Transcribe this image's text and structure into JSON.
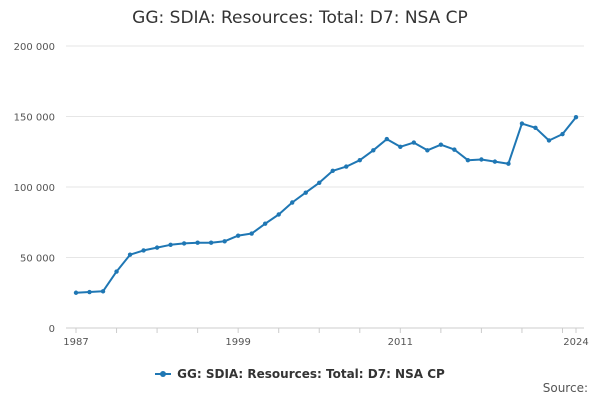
{
  "chart_data": {
    "type": "line",
    "title": "GG: SDIA: Resources: Total: D7: NSA CP",
    "x_tick_labels": [
      "1987",
      "1999",
      "2011",
      "2024"
    ],
    "y_tick_labels": [
      "0",
      "50 000",
      "100 000",
      "150 000",
      "200 000"
    ],
    "x_range": [
      1987,
      2024
    ],
    "ylim": [
      0,
      200000
    ],
    "grid": "horizontal",
    "legend_position": "bottom",
    "series": [
      {
        "name": "GG: SDIA: Resources: Total: D7: NSA CP",
        "color": "#1f77b4",
        "x": [
          1987,
          1988,
          1989,
          1990,
          1991,
          1992,
          1993,
          1994,
          1995,
          1996,
          1997,
          1998,
          1999,
          2000,
          2001,
          2002,
          2003,
          2004,
          2005,
          2006,
          2007,
          2008,
          2009,
          2010,
          2011,
          2012,
          2013,
          2014,
          2015,
          2016,
          2017,
          2018,
          2019,
          2020,
          2021,
          2022,
          2023,
          2024
        ],
        "values": [
          25000,
          25500,
          26000,
          40000,
          52000,
          55000,
          57000,
          59000,
          60000,
          60500,
          60500,
          61500,
          65500,
          67000,
          74000,
          80500,
          89000,
          96000,
          103000,
          111500,
          114500,
          119000,
          126000,
          134000,
          128500,
          131500,
          126000,
          130000,
          126500,
          119000,
          119500,
          118000,
          116500,
          145000,
          142000,
          133000,
          137500,
          149500
        ]
      }
    ]
  },
  "legend": {
    "label": "GG: SDIA: Resources: Total: D7: NSA CP"
  },
  "source_label": "Source:"
}
